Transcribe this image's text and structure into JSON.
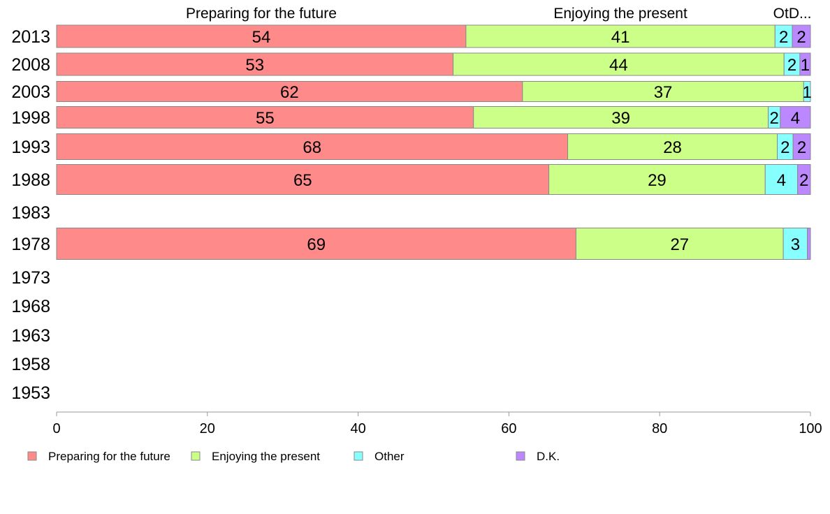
{
  "chart_data": {
    "type": "bar",
    "orientation": "horizontal",
    "stacked": true,
    "categories": [
      "2013",
      "2008",
      "2003",
      "1998",
      "1993",
      "1988",
      "1983",
      "1978",
      "1973",
      "1968",
      "1963",
      "1958",
      "1953"
    ],
    "series": [
      {
        "name": "Preparing for the future",
        "color": "#ff8a8a",
        "values": [
          54.3,
          52.6,
          61.8,
          55.3,
          67.8,
          65.3,
          null,
          68.9,
          null,
          null,
          null,
          null,
          null
        ],
        "labels": [
          "54",
          "53",
          "62",
          "55",
          "68",
          "65",
          "",
          "69",
          "",
          "",
          "",
          "",
          ""
        ]
      },
      {
        "name": "Enjoying the present",
        "color": "#ccff88",
        "values": [
          41.0,
          43.9,
          37.3,
          39.1,
          27.8,
          28.7,
          null,
          27.5,
          null,
          null,
          null,
          null,
          null
        ],
        "labels": [
          "41",
          "44",
          "37",
          "39",
          "28",
          "29",
          "",
          "27",
          "",
          "",
          "",
          "",
          ""
        ]
      },
      {
        "name": "Other",
        "color": "#88ffff",
        "values": [
          2.3,
          2.1,
          0.9,
          1.6,
          2.1,
          4.3,
          null,
          3.2,
          null,
          null,
          null,
          null,
          null
        ],
        "labels": [
          "2",
          "2",
          "1",
          "2",
          "2",
          "4",
          "",
          "3",
          "",
          "",
          "",
          "",
          ""
        ]
      },
      {
        "name": "D.K.",
        "color": "#bb88ff",
        "values": [
          2.4,
          1.4,
          0.0,
          4.0,
          2.3,
          1.7,
          null,
          0.4,
          null,
          null,
          null,
          null,
          null
        ],
        "labels": [
          "2",
          "1",
          "",
          "4",
          "2",
          "2",
          "",
          "",
          "",
          "",
          "",
          "",
          ""
        ]
      }
    ],
    "xlim": [
      0,
      100
    ],
    "xticks": [
      "0",
      "20",
      "40",
      "60",
      "80",
      "100"
    ],
    "top_labels": [
      "Preparing for the future",
      "Enjoying the present",
      "OtD..."
    ],
    "legend": [
      "Preparing for the future",
      "Enjoying the present",
      "Other",
      "D.K."
    ],
    "legend_position": "bottom",
    "grid": false
  }
}
